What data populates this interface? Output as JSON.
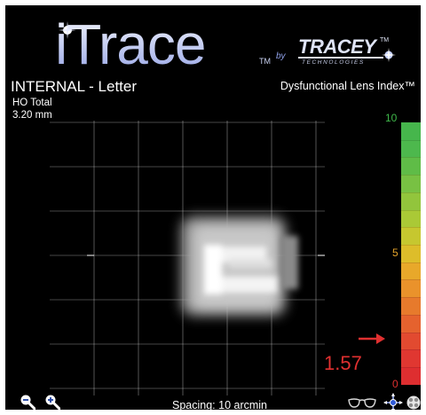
{
  "logo": {
    "brand": "iTrace",
    "trademark": "TM",
    "by": "by",
    "company": "TRACEY",
    "company_trademark": "TM",
    "company_sub": "TECHNOLOGIES"
  },
  "panel": {
    "title": "INTERNAL - Letter",
    "subtitle_line1": "HO Total",
    "subtitle_line2": "3.20 mm",
    "index_label": "Dysfunctional Lens Index™"
  },
  "scale": {
    "min": 0,
    "max": 10,
    "mid": 5,
    "labels": [
      {
        "text": "10",
        "value": 10,
        "color": "#3fb84a"
      },
      {
        "text": "5",
        "value": 5,
        "color": "#e6a52a"
      },
      {
        "text": "0",
        "value": 0,
        "color": "#e03030"
      }
    ],
    "bands": [
      "#46b64c",
      "#4db84d",
      "#5fbc47",
      "#78c143",
      "#92c53c",
      "#aac936",
      "#c6c72f",
      "#ddbd2a",
      "#e8a82a",
      "#ea922b",
      "#e77a2c",
      "#e5622e",
      "#e24a30",
      "#e03731",
      "#de2e30"
    ]
  },
  "readout": {
    "value": "1.57",
    "numeric": 1.57,
    "color": "#e03030"
  },
  "footer": {
    "spacing_label": "Spacing:  10 arcmin"
  },
  "icons": {
    "zoom_out": "zoom-out-icon",
    "zoom_in": "zoom-in-icon",
    "glasses": "glasses-icon",
    "crosshair": "crosshair-icon",
    "target": "target-icon"
  }
}
